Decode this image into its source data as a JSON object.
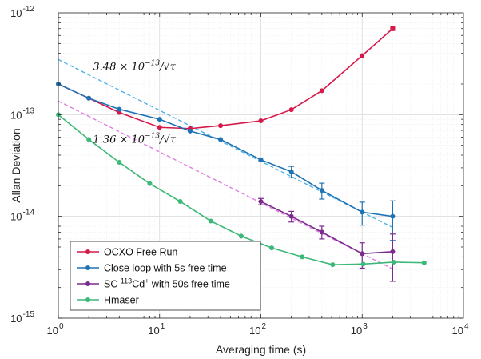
{
  "chart_data": {
    "type": "scatter",
    "xscale": "log",
    "yscale": "log",
    "xlim": [
      1,
      10000
    ],
    "ylim": [
      1e-15,
      1e-12
    ],
    "xlabel": "Averaging time (s)",
    "ylabel": "Allan Deviation",
    "grid": true,
    "x_ticks": [
      {
        "value": 1,
        "base": "10",
        "exp": "0"
      },
      {
        "value": 10,
        "base": "10",
        "exp": "1"
      },
      {
        "value": 100,
        "base": "10",
        "exp": "2"
      },
      {
        "value": 1000,
        "base": "10",
        "exp": "3"
      },
      {
        "value": 10000,
        "base": "10",
        "exp": "4"
      }
    ],
    "y_ticks": [
      {
        "value": 1e-15,
        "base": "10",
        "exp": "-15"
      },
      {
        "value": 1e-14,
        "base": "10",
        "exp": "-14"
      },
      {
        "value": 1e-13,
        "base": "10",
        "exp": "-13"
      },
      {
        "value": 1e-12,
        "base": "10",
        "exp": "-12"
      }
    ],
    "legend_position": "bottom-left",
    "series": [
      {
        "name": "OCXO Free Run",
        "color": "#d7194a",
        "x": [
          1,
          2,
          4,
          10,
          20,
          40,
          100,
          200,
          400,
          1000,
          2000
        ],
        "y": [
          2e-13,
          1.45e-13,
          1.05e-13,
          7.5e-14,
          7.3e-14,
          7.8e-14,
          8.7e-14,
          1.12e-13,
          1.72e-13,
          3.8e-13,
          7e-13
        ],
        "err": [
          0,
          0,
          0,
          0,
          0,
          0,
          0,
          0,
          0,
          0,
          0
        ]
      },
      {
        "name": "Close loop with 5s free time",
        "color": "#1f73b4",
        "x": [
          1,
          2,
          4,
          10,
          20,
          40,
          100,
          200,
          400,
          1000,
          2000
        ],
        "y": [
          2e-13,
          1.45e-13,
          1.13e-13,
          9e-14,
          6.9e-14,
          5.7e-14,
          3.6e-14,
          2.75e-14,
          1.8e-14,
          1.1e-14,
          1e-14
        ],
        "err": [
          0,
          0,
          0,
          0,
          0,
          0,
          1.5e-15,
          3.5e-15,
          3.2e-15,
          2.8e-15,
          4.2e-15
        ]
      },
      {
        "name": "SC {sup}Cd{plus} with 50s free time",
        "name_parts": [
          "SC ",
          "113",
          "Cd",
          "+",
          " with 50s free time"
        ],
        "color": "#7b2a8e",
        "x": [
          100,
          200,
          400,
          1000,
          2000
        ],
        "y": [
          1.4e-14,
          1e-14,
          7e-15,
          4.3e-15,
          4.5e-15
        ],
        "err": [
          1e-15,
          1.2e-15,
          1e-15,
          1.2e-15,
          2.2e-15
        ]
      },
      {
        "name": "Hmaser",
        "color": "#3cb878",
        "x": [
          1,
          2,
          4,
          8,
          16,
          32,
          64,
          128,
          256,
          512,
          1024,
          2048,
          4096
        ],
        "y": [
          1e-13,
          5.7e-14,
          3.4e-14,
          2.1e-14,
          1.4e-14,
          9e-15,
          6.4e-15,
          4.9e-15,
          4e-15,
          3.35e-15,
          3.4e-15,
          3.55e-15,
          3.5e-15
        ],
        "err": [
          0,
          0,
          0,
          0,
          0,
          0,
          0,
          0,
          0,
          0,
          0,
          0,
          0
        ]
      }
    ],
    "fit_lines": [
      {
        "label_parts": [
          "3.48 × 10",
          "−13",
          "/√τ"
        ],
        "color": "#4fb3e8",
        "coef": 3.48e-13,
        "x_range": [
          1,
          2000
        ],
        "label_x": 2.2,
        "label_y": 2.75e-13
      },
      {
        "label_parts": [
          "1.36 × 10",
          "−13",
          "/√τ"
        ],
        "color": "#e07be0",
        "coef": 1.36e-13,
        "x_range": [
          1,
          2000
        ],
        "label_x": 2.2,
        "label_y": 5.3e-14
      }
    ]
  }
}
